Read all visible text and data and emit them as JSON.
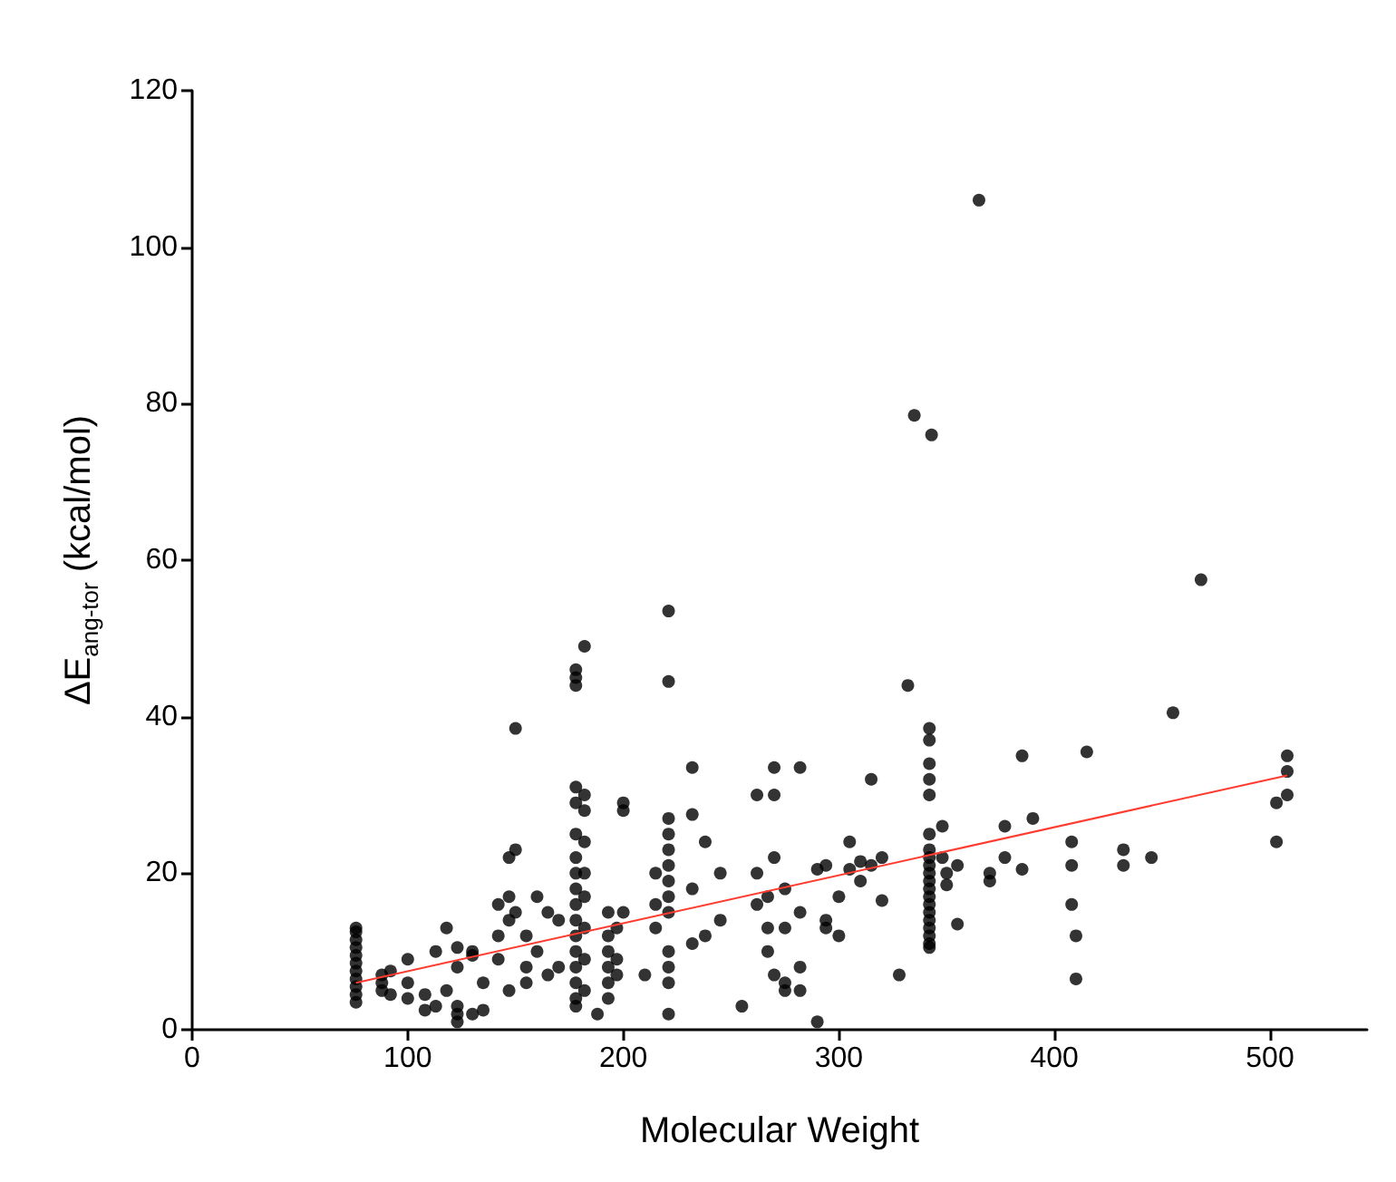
{
  "chart_data": {
    "type": "scatter",
    "xlabel": "Molecular Weight",
    "ylabel": "ΔE$_{ang-tor}$ (kcal/mol)",
    "xlim": [
      0,
      545
    ],
    "xticks": [
      0,
      100,
      200,
      300,
      400,
      500
    ],
    "ylim": [
      0,
      120
    ],
    "yticks": [
      0,
      20,
      40,
      60,
      80,
      100,
      120
    ],
    "grid": false,
    "marker": "circle",
    "series": [
      {
        "color": "#000000",
        "x": [
          76,
          76,
          76,
          76,
          76,
          76,
          76,
          76,
          76,
          76,
          76,
          88,
          88,
          88,
          92,
          92,
          100,
          100,
          100,
          108,
          108,
          113,
          113,
          118,
          118,
          123,
          123,
          123,
          123,
          123,
          130,
          130,
          130,
          135,
          135,
          142,
          142,
          142,
          147,
          147,
          147,
          147,
          150,
          150,
          150,
          155,
          155,
          155,
          160,
          160,
          165,
          165,
          170,
          170,
          178,
          178,
          178,
          178,
          178,
          178,
          178,
          178,
          178,
          178,
          178,
          178,
          178,
          178,
          178,
          178,
          178,
          182,
          182,
          182,
          182,
          182,
          182,
          182,
          182,
          182,
          188,
          193,
          193,
          193,
          193,
          193,
          193,
          197,
          197,
          197,
          200,
          200,
          200,
          210,
          215,
          215,
          215,
          221,
          221,
          221,
          221,
          221,
          221,
          221,
          221,
          221,
          221,
          221,
          221,
          221,
          232,
          232,
          232,
          232,
          238,
          238,
          245,
          245,
          255,
          262,
          262,
          262,
          267,
          267,
          267,
          270,
          270,
          270,
          270,
          275,
          275,
          275,
          275,
          282,
          282,
          282,
          282,
          290,
          290,
          294,
          294,
          294,
          300,
          300,
          305,
          305,
          310,
          310,
          315,
          315,
          320,
          320,
          328,
          332,
          335,
          342,
          342,
          342,
          342,
          342,
          342,
          342,
          342,
          342,
          342,
          342,
          342,
          342,
          342,
          342,
          342,
          342,
          342,
          342,
          342,
          343,
          348,
          348,
          350,
          350,
          355,
          355,
          365,
          370,
          370,
          377,
          377,
          385,
          385,
          390,
          408,
          408,
          408,
          410,
          410,
          415,
          432,
          432,
          445,
          455,
          468,
          503,
          503,
          508,
          508,
          508
        ],
        "values": [
          3.5,
          4.5,
          5.5,
          6.5,
          7.5,
          8.5,
          9.5,
          10.5,
          11.5,
          12.5,
          13,
          5,
          6,
          7,
          4.5,
          7.5,
          4,
          6,
          9,
          4.5,
          2.5,
          10,
          3,
          13,
          5,
          1,
          2,
          3,
          8,
          10.5,
          2,
          9.5,
          10,
          2.5,
          6,
          9,
          12,
          16,
          17,
          22,
          5,
          14,
          38.5,
          23,
          15,
          12,
          8,
          6,
          17,
          10,
          15,
          7,
          8,
          14,
          46,
          45,
          44,
          31,
          29,
          25,
          22,
          20,
          18,
          16,
          14,
          12,
          10,
          8,
          6,
          4,
          3,
          49,
          30,
          28,
          24,
          20,
          17,
          13,
          9,
          5,
          2,
          15,
          12,
          10,
          8,
          6,
          4,
          13,
          9,
          7,
          29,
          28,
          15,
          7,
          20,
          16,
          13,
          53.5,
          44.5,
          27,
          25,
          23,
          21,
          19,
          17,
          15,
          10,
          8,
          6,
          2,
          33.5,
          27.5,
          18,
          11,
          24,
          12,
          14,
          20,
          3,
          30,
          16,
          20,
          17,
          10,
          13,
          33.5,
          30,
          22,
          7,
          18,
          13,
          5,
          6,
          33.5,
          15,
          5,
          8,
          1,
          20.5,
          21,
          14,
          13,
          17,
          12,
          20.5,
          24,
          21.5,
          19,
          32,
          21,
          22,
          16.5,
          7,
          44,
          78.5,
          38.5,
          37,
          34,
          32,
          30,
          25,
          23,
          22,
          21,
          20,
          19,
          18,
          17,
          16,
          15,
          14,
          13,
          12,
          11,
          10.5,
          76,
          26,
          22,
          18.5,
          20,
          13.5,
          21,
          106,
          19,
          20,
          26,
          22,
          35,
          20.5,
          27,
          16,
          21,
          24,
          12,
          6.5,
          35.5,
          21,
          23,
          22,
          40.5,
          57.5,
          24,
          29,
          35,
          33,
          30
        ]
      },
      {
        "type": "line",
        "color": "#ff3b30",
        "marker": "none",
        "line_style": "solid",
        "x": [
          76,
          508
        ],
        "values": [
          6,
          32.5
        ]
      }
    ]
  }
}
